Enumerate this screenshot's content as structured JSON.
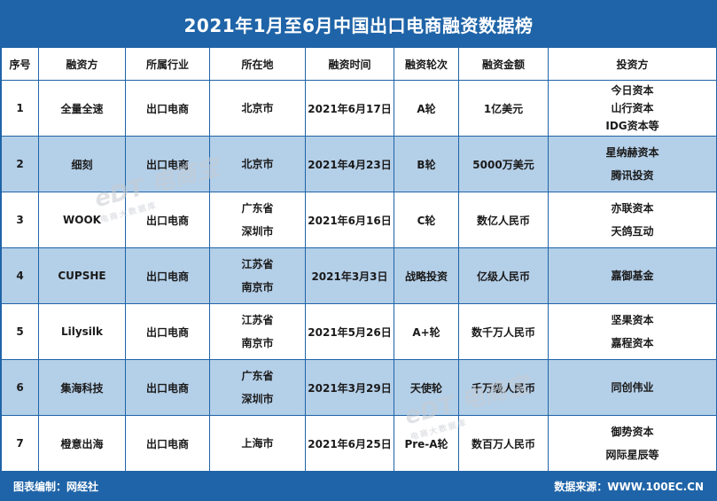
{
  "title": "2021年1月至6月中国出口电商融资数据榜",
  "columns": [
    "序号",
    "融资方",
    "所属行业",
    "所在地",
    "融资时间",
    "融资轮次",
    "融资金额",
    "投资方"
  ],
  "rows": [
    {
      "no": "1",
      "company": "全量全速",
      "industry": "出口电商",
      "location": [
        "北京市"
      ],
      "date": "2021年6月17日",
      "round": "A轮",
      "amount": "1亿美元",
      "investors": [
        "今日资本",
        "山行资本",
        "IDG资本等"
      ]
    },
    {
      "no": "2",
      "company": "细刻",
      "industry": "出口电商",
      "location": [
        "北京市"
      ],
      "date": "2021年4月23日",
      "round": "B轮",
      "amount": "5000万美元",
      "investors": [
        "星纳赫资本",
        "腾讯投资"
      ]
    },
    {
      "no": "3",
      "company": "WOOK",
      "industry": "出口电商",
      "location": [
        "广东省",
        "深圳市"
      ],
      "date": "2021年6月16日",
      "round": "C轮",
      "amount": "数亿人民币",
      "investors": [
        "亦联资本",
        "天鸽互动"
      ]
    },
    {
      "no": "4",
      "company": "CUPSHE",
      "industry": "出口电商",
      "location": [
        "江苏省",
        "南京市"
      ],
      "date": "2021年3月3日",
      "round": "战略投资",
      "amount": "亿级人民币",
      "investors": [
        "嘉御基金"
      ]
    },
    {
      "no": "5",
      "company": "Lilysilk",
      "industry": "出口电商",
      "location": [
        "江苏省",
        "南京市"
      ],
      "date": "2021年5月26日",
      "round": "A+轮",
      "amount": "数千万人民币",
      "investors": [
        "坚果资本",
        "嘉程资本"
      ]
    },
    {
      "no": "6",
      "company": "集海科技",
      "industry": "出口电商",
      "location": [
        "广东省",
        "深圳市"
      ],
      "date": "2021年3月29日",
      "round": "天使轮",
      "amount": "千万级人民币",
      "investors": [
        "同创伟业"
      ]
    },
    {
      "no": "7",
      "company": "橙意出海",
      "industry": "出口电商",
      "location": [
        "上海市"
      ],
      "date": "2021年6月25日",
      "round": "Pre-A轮",
      "amount": "数百万人民币",
      "investors": [
        "御势资本",
        "网际星辰等"
      ]
    }
  ],
  "footer": {
    "credit": "图表编制：网经社",
    "source": "数据来源：WWW.100EC.CN"
  },
  "watermark": {
    "logo": "电商宝",
    "sub": "电商大数据库"
  }
}
